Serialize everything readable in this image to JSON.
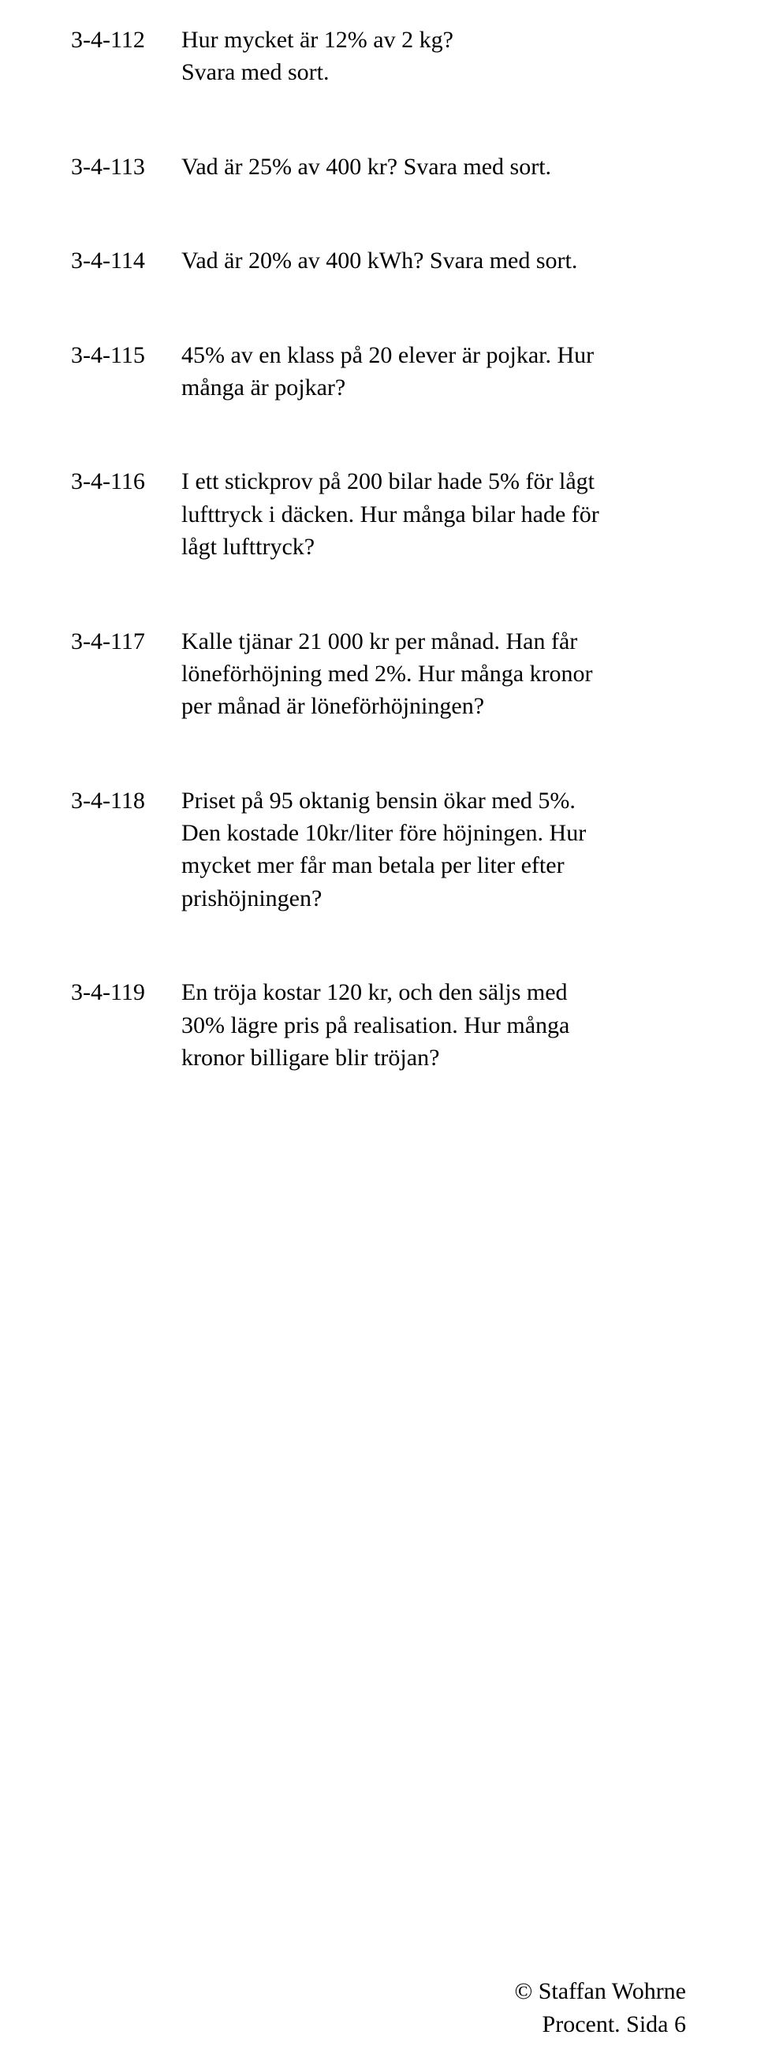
{
  "questions": [
    {
      "num": "3-4-112",
      "text_line1": "Hur mycket är 12% av 2 kg?",
      "text_line2": "Svara med sort."
    },
    {
      "num": "3-4-113",
      "text_line1": "Vad är 25% av 400 kr? Svara med sort.",
      "text_line2": ""
    },
    {
      "num": "3-4-114",
      "text_line1": "Vad är 20% av 400 kWh? Svara med sort.",
      "text_line2": ""
    },
    {
      "num": "3-4-115",
      "text_line1": "45% av en klass på 20 elever är pojkar. Hur många är pojkar?",
      "text_line2": ""
    },
    {
      "num": "3-4-116",
      "text_line1": "I ett stickprov på 200 bilar hade 5% för lågt lufttryck i däcken. Hur många bilar hade för lågt lufttryck?",
      "text_line2": ""
    },
    {
      "num": "3-4-117",
      "text_line1": "Kalle tjänar 21 000 kr per månad. Han får löneförhöjning med 2%. Hur många kronor per månad är löneförhöjningen?",
      "text_line2": ""
    },
    {
      "num": "3-4-118",
      "text_line1": " Priset på 95 oktanig bensin ökar med 5%. Den kostade 10kr/liter före höjningen. Hur mycket mer får man betala per liter efter prishöjningen?",
      "text_line2": ""
    },
    {
      "num": "3-4-119",
      "text_line1": "En tröja kostar 120 kr, och den säljs med 30% lägre pris på realisation. Hur många kronor billigare blir tröjan?",
      "text_line2": ""
    }
  ],
  "footer": {
    "copyright": "© Staffan Wohrne",
    "pageref": "Procent. Sida 6"
  }
}
